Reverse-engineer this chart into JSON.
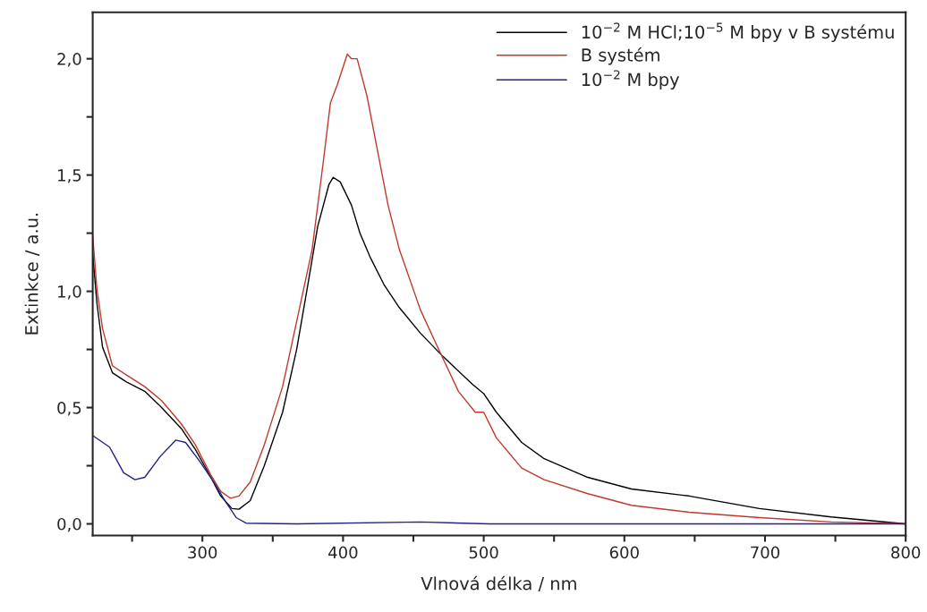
{
  "chart_data": {
    "type": "line",
    "xlabel": "Vlnová délka / nm",
    "ylabel": "Extinkce / a.u.",
    "xlim": [
      222,
      800
    ],
    "ylim": [
      -0.05,
      2.2
    ],
    "xticks": [
      {
        "value": 250,
        "label": null
      },
      300,
      {
        "value": 350,
        "label": null
      },
      400,
      {
        "value": 450,
        "label": null
      },
      500,
      {
        "value": 550,
        "label": null
      },
      600,
      {
        "value": 650,
        "label": null
      },
      700,
      {
        "value": 750,
        "label": null
      },
      800
    ],
    "yticks": [
      {
        "value": 0,
        "label": "0,0"
      },
      {
        "value": 0.25,
        "label": null
      },
      {
        "value": 0.5,
        "label": "0,5"
      },
      {
        "value": 0.75,
        "label": null
      },
      {
        "value": 1.0,
        "label": "1,0"
      },
      {
        "value": 1.25,
        "label": null
      },
      {
        "value": 1.5,
        "label": "1,5"
      },
      {
        "value": 1.75,
        "label": null
      },
      {
        "value": 2.0,
        "label": "2,0"
      }
    ],
    "grid": false,
    "legend": "top right",
    "line_style": "solid",
    "series": [
      {
        "name": "10$^{−2}$ M HCl;10$^{−5}$ M bpy v B systému",
        "color": "#000000",
        "x": [
          222,
          225,
          229,
          236,
          246,
          259,
          271,
          285,
          295,
          306,
          313,
          321,
          326,
          334,
          344,
          357,
          367,
          375,
          382,
          390,
          393,
          398,
          406,
          412,
          419,
          429,
          440,
          455,
          471,
          492,
          500,
          509,
          527,
          543,
          574,
          605,
          646,
          696,
          747,
          800
        ],
        "values": [
          1.16,
          0.95,
          0.76,
          0.65,
          0.61,
          0.57,
          0.5,
          0.41,
          0.32,
          0.2,
          0.12,
          0.066,
          0.063,
          0.1,
          0.25,
          0.48,
          0.75,
          1.03,
          1.28,
          1.46,
          1.49,
          1.47,
          1.37,
          1.25,
          1.15,
          1.03,
          0.93,
          0.82,
          0.72,
          0.6,
          0.56,
          0.48,
          0.35,
          0.28,
          0.2,
          0.15,
          0.12,
          0.066,
          0.03,
          0.0
        ]
      },
      {
        "name": "B systém",
        "color": "#c0392b",
        "x": [
          222,
          225,
          229,
          236,
          246,
          259,
          271,
          285,
          295,
          306,
          313,
          320,
          326,
          334,
          344,
          357,
          367,
          378,
          386,
          391,
          396,
          403,
          406,
          410,
          417,
          424,
          432,
          440,
          455,
          468,
          482,
          494,
          500,
          509,
          527,
          543,
          574,
          605,
          646,
          696,
          747,
          800
        ],
        "values": [
          1.24,
          1.01,
          0.84,
          0.68,
          0.64,
          0.59,
          0.53,
          0.43,
          0.34,
          0.21,
          0.14,
          0.11,
          0.12,
          0.18,
          0.34,
          0.59,
          0.87,
          1.18,
          1.56,
          1.81,
          1.89,
          2.02,
          2.0,
          2.0,
          1.84,
          1.62,
          1.37,
          1.18,
          0.92,
          0.75,
          0.57,
          0.48,
          0.48,
          0.37,
          0.24,
          0.19,
          0.13,
          0.08,
          0.05,
          0.027,
          0.008,
          0.0
        ]
      },
      {
        "name": "10$^{−2}$ M bpy",
        "color": "#22228a",
        "x": [
          222,
          234,
          244,
          252,
          259,
          270,
          281,
          288,
          298,
          308,
          316,
          324,
          331,
          367,
          455,
          504,
          800
        ],
        "values": [
          0.38,
          0.33,
          0.22,
          0.19,
          0.2,
          0.29,
          0.36,
          0.35,
          0.27,
          0.18,
          0.1,
          0.027,
          0.003,
          0.0,
          0.008,
          0.0,
          0.0
        ]
      }
    ]
  }
}
